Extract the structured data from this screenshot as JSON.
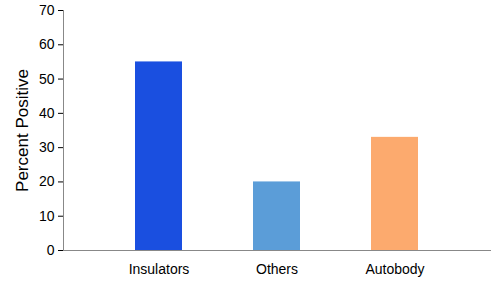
{
  "chart_data": {
    "type": "bar",
    "y_label": "Percent Positive",
    "categories": [
      "Insulators",
      "Others",
      "Autobody"
    ],
    "values": [
      55,
      20,
      33
    ],
    "colors": [
      "#1a4fe0",
      "#5b9dd8",
      "#fcaa6e"
    ],
    "ylim": [
      0,
      70
    ],
    "yticks": [
      0,
      10,
      20,
      30,
      40,
      50,
      60,
      70
    ],
    "grid": false
  }
}
